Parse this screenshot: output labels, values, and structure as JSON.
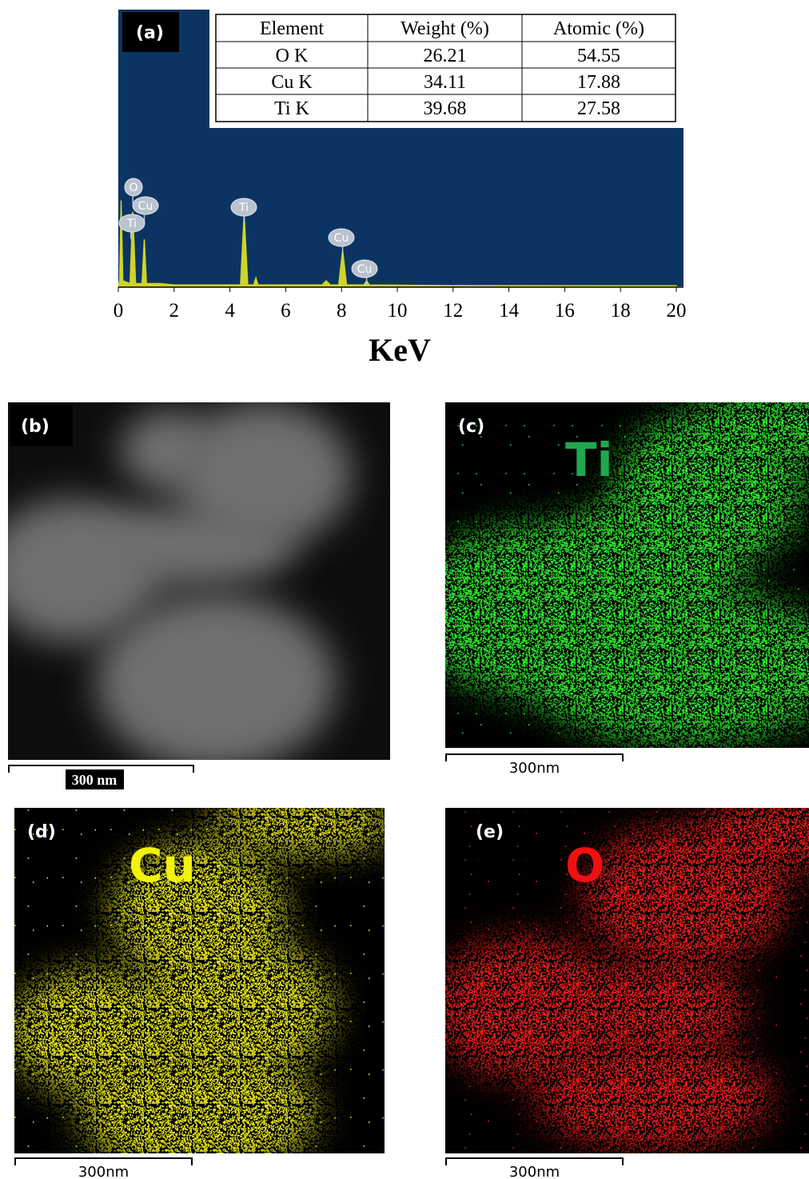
{
  "chart_data": {
    "type": "line",
    "panel_label": "(a)",
    "xlabel": "KeV",
    "x": [
      0,
      0.05,
      0.1,
      0.16,
      0.42,
      0.52,
      0.62,
      0.85,
      0.93,
      1.01,
      1.5,
      2,
      4.38,
      4.51,
      4.64,
      4.85,
      4.93,
      5.01,
      7.3,
      7.45,
      7.6,
      7.9,
      8.04,
      8.18,
      8.8,
      8.9,
      9.0,
      12,
      20
    ],
    "values": [
      0,
      2,
      31,
      2,
      1,
      27,
      1,
      1,
      17,
      1,
      1,
      0.5,
      0.5,
      26,
      0.5,
      0.5,
      3,
      0.5,
      0.5,
      2,
      0.5,
      0.5,
      13,
      0.5,
      0.5,
      2,
      0.5,
      0.3,
      0.2
    ],
    "color": "#cfd42a",
    "background": "#0b3463",
    "xlim": [
      0,
      20
    ],
    "xticks": [
      0,
      2,
      4,
      6,
      8,
      10,
      12,
      14,
      16,
      18,
      20
    ],
    "ylim": [
      0,
      100
    ],
    "annotations": [
      {
        "text": "O",
        "x": 0.52
      },
      {
        "text": "Cu",
        "x": 0.93
      },
      {
        "text": "Ti",
        "x": 0.45
      },
      {
        "text": "Ti",
        "x": 4.51
      },
      {
        "text": "Cu",
        "x": 8.04
      },
      {
        "text": "Cu",
        "x": 8.9
      }
    ]
  },
  "table": {
    "header": [
      "Element",
      "Weight (%)",
      "Atomic (%)"
    ],
    "rows": [
      [
        "O K",
        "26.21",
        "54.55"
      ],
      [
        "Cu K",
        "34.11",
        "17.88"
      ],
      [
        "Ti K",
        "39.68",
        "27.58"
      ]
    ]
  },
  "panels": [
    {
      "label": "(b)",
      "scale_bar": "300 nm"
    },
    {
      "label": "(c)",
      "element": "Ti",
      "scale_bar": "300nm",
      "color": "#2bea2b",
      "label_color": "#1fa84f"
    },
    {
      "label": "(d)",
      "element": "Cu",
      "scale_bar": "300nm",
      "color": "#e8e81c",
      "label_color": "#f2f20a"
    },
    {
      "label": "(e)",
      "element": "O",
      "scale_bar": "300nm",
      "color": "#f21c1c",
      "label_color": "#ee1111"
    }
  ]
}
